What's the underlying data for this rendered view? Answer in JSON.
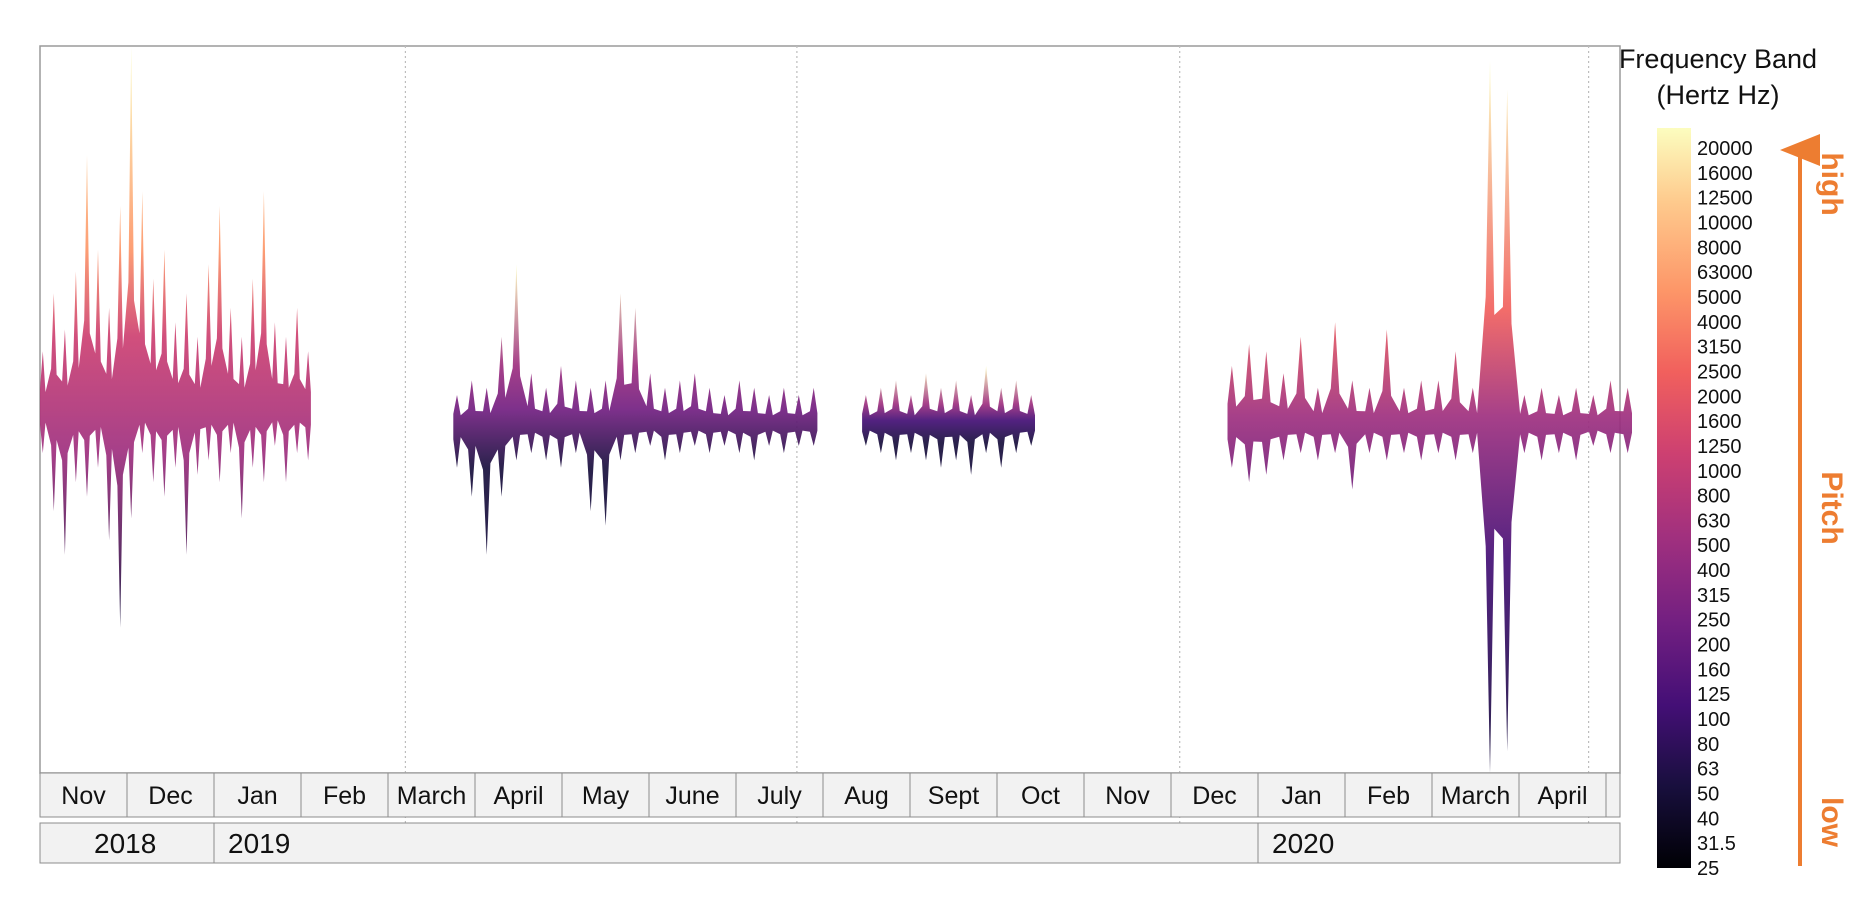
{
  "chart_data": {
    "type": "area",
    "description_axis": "timeline",
    "months": [
      "Nov",
      "Dec",
      "Jan",
      "Feb",
      "March",
      "April",
      "May",
      "June",
      "July",
      "Aug",
      "Sept",
      "Oct",
      "Nov",
      "Dec",
      "Jan",
      "Feb",
      "March",
      "April"
    ],
    "years": [
      {
        "label": "2018",
        "start_index": 0
      },
      {
        "label": "2019",
        "start_index": 2
      },
      {
        "label": "2020",
        "start_index": 14
      }
    ],
    "legend": {
      "title_line1": "Frequency Band",
      "title_line2": "(Hertz Hz)",
      "ticks": [
        "20000",
        "16000",
        "12500",
        "10000",
        "8000",
        "63000",
        "5000",
        "4000",
        "3150",
        "2500",
        "2000",
        "1600",
        "1250",
        "1000",
        "800",
        "630",
        "500",
        "400",
        "315",
        "250",
        "200",
        "160",
        "125",
        "100",
        "80",
        "63",
        "50",
        "40",
        "31.5",
        "25"
      ],
      "colors": [
        "#fcfdbf",
        "#feca8d",
        "#fd9668",
        "#f1605d",
        "#cd4071",
        "#9e2f7f",
        "#721f81",
        "#440f76",
        "#180f3d",
        "#000004"
      ],
      "high_label": "high",
      "pitch_label": "Pitch",
      "low_label": "low",
      "accent_color": "#ed7d31"
    },
    "bursts": [
      {
        "x0": 0.0,
        "x1": 3.05,
        "center": 0.5,
        "up": [
          0.08,
          0.16,
          0.11,
          0.19,
          0.35,
          0.22,
          0.14,
          0.28,
          0.5,
          0.3,
          0.18,
          0.22,
          0.12,
          0.16,
          0.1,
          0.2,
          0.28,
          0.14,
          0.1,
          0.18,
          0.3,
          0.12,
          0.1,
          0.14,
          0.08
        ],
        "down": [
          0.06,
          0.14,
          0.2,
          0.1,
          0.12,
          0.08,
          0.18,
          0.3,
          0.15,
          0.06,
          0.1,
          0.12,
          0.08,
          0.2,
          0.09,
          0.07,
          0.1,
          0.06,
          0.15,
          0.08,
          0.1,
          0.05,
          0.1,
          0.06,
          0.07
        ],
        "palette_top": 0.25,
        "palette_bot": 0.55
      },
      {
        "x0": 4.75,
        "x1": 8.85,
        "center": 0.52,
        "up": [
          0.04,
          0.06,
          0.05,
          0.12,
          0.22,
          0.07,
          0.05,
          0.08,
          0.06,
          0.05,
          0.06,
          0.18,
          0.16,
          0.07,
          0.05,
          0.06,
          0.07,
          0.05,
          0.04,
          0.06,
          0.05,
          0.04,
          0.05,
          0.04,
          0.05
        ],
        "down": [
          0.06,
          0.1,
          0.18,
          0.1,
          0.05,
          0.04,
          0.05,
          0.06,
          0.04,
          0.12,
          0.14,
          0.05,
          0.04,
          0.03,
          0.05,
          0.04,
          0.03,
          0.04,
          0.03,
          0.04,
          0.05,
          0.03,
          0.04,
          0.03,
          0.03
        ],
        "palette_top": 0.55,
        "palette_bot": 0.85
      },
      {
        "x0": 9.45,
        "x1": 11.35,
        "center": 0.52,
        "up": [
          0.04,
          0.05,
          0.06,
          0.04,
          0.07,
          0.05,
          0.06,
          0.04,
          0.08,
          0.05,
          0.06,
          0.04
        ],
        "down": [
          0.03,
          0.04,
          0.05,
          0.04,
          0.05,
          0.06,
          0.05,
          0.07,
          0.04,
          0.06,
          0.04,
          0.03
        ],
        "palette_top": 0.6,
        "palette_bot": 0.85
      },
      {
        "x0": 13.65,
        "x1": 18.2,
        "center": 0.52,
        "up": [
          0.08,
          0.11,
          0.1,
          0.07,
          0.12,
          0.05,
          0.14,
          0.06,
          0.05,
          0.13,
          0.05,
          0.06,
          0.06,
          0.1,
          0.05,
          0.5,
          0.46,
          0.04,
          0.05,
          0.04,
          0.05,
          0.04,
          0.06,
          0.05
        ],
        "down": [
          0.06,
          0.08,
          0.07,
          0.05,
          0.04,
          0.05,
          0.04,
          0.09,
          0.04,
          0.05,
          0.04,
          0.05,
          0.04,
          0.05,
          0.04,
          0.48,
          0.45,
          0.04,
          0.05,
          0.04,
          0.05,
          0.03,
          0.04,
          0.04
        ],
        "palette_top": 0.3,
        "palette_bot": 0.8
      }
    ]
  }
}
